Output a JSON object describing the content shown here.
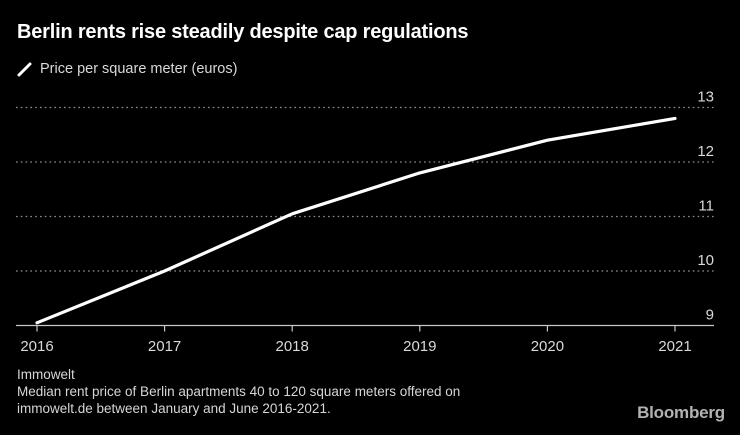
{
  "chart": {
    "title": "Berlin rents rise steadily despite cap regulations",
    "legend_label": "Price per square meter (euros)"
  },
  "chart_data": {
    "type": "line",
    "title": "Berlin rents rise steadily despite cap regulations",
    "series_name": "Price per square meter (euros)",
    "x": [
      2016,
      2017,
      2018,
      2019,
      2020,
      2021
    ],
    "values": [
      9.05,
      10.0,
      11.05,
      11.8,
      12.4,
      12.8
    ],
    "xlabel": "",
    "ylabel": "Price per square meter (euros)",
    "ylim": [
      9,
      13
    ],
    "yticks": [
      9,
      10,
      11,
      12,
      13
    ],
    "xticks": [
      "2016",
      "2017",
      "2018",
      "2019",
      "2020",
      "2021"
    ],
    "grid": "dotted-horizontal",
    "y_axis_side": "right",
    "legend_position": "top-left",
    "colors": {
      "background": "#000000",
      "line": "#ffffff",
      "gridline": "#8f8f8f",
      "axis": "#c8c8c8",
      "tick_label": "#d9d9d9"
    }
  },
  "footer": {
    "source": "Immowelt",
    "note_line1": "Median rent price of Berlin apartments 40 to 120 square meters offered on",
    "note_line2": "immowelt.de between January and June 2016-2021."
  },
  "branding": {
    "logo": "Bloomberg"
  }
}
